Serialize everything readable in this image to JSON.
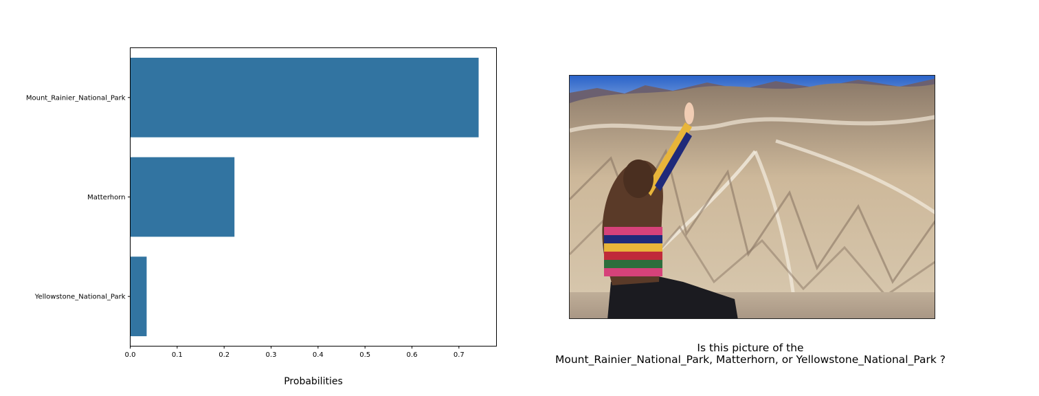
{
  "chart_data": {
    "type": "bar",
    "orientation": "horizontal",
    "categories": [
      "Mount_Rainier_National_Park",
      "Matterhorn",
      "Yellowstone_National_Park"
    ],
    "values": [
      0.742,
      0.222,
      0.035
    ],
    "xlabel": "Probabilities",
    "xlim": [
      0,
      0.78
    ],
    "xticks": [
      "0.0",
      "0.1",
      "0.2",
      "0.3",
      "0.4",
      "0.5",
      "0.6",
      "0.7"
    ],
    "bar_color": "#3274a1",
    "grid": false
  },
  "photo": {
    "description_icon": "photo-woman-badlands"
  },
  "question": {
    "line1": "Is this picture of the",
    "line2": "Mount_Rainier_National_Park, Matterhorn, or Yellowstone_National_Park ?"
  }
}
